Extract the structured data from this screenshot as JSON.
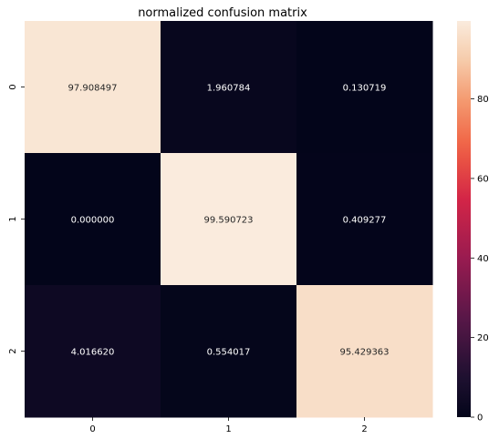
{
  "chart_data": {
    "type": "heatmap",
    "title": "normalized confusion matrix",
    "x_categories": [
      "0",
      "1",
      "2"
    ],
    "y_categories": [
      "0",
      "1",
      "2"
    ],
    "values": [
      [
        97.908497,
        1.960784,
        0.130719
      ],
      [
        0.0,
        99.590723,
        0.409277
      ],
      [
        4.01662,
        0.554017,
        95.429363
      ]
    ],
    "cell_labels": [
      [
        "97.908497",
        "1.960784",
        "0.130719"
      ],
      [
        "0.000000",
        "99.590723",
        "0.409277"
      ],
      [
        "4.016620",
        "0.554017",
        "95.429363"
      ]
    ],
    "colorbar": {
      "range": [
        0,
        99.590723
      ],
      "ticks": [
        0,
        20,
        40,
        60,
        80
      ],
      "tick_labels": [
        "0",
        "20",
        "40",
        "60",
        "80"
      ],
      "colormap": "rocket"
    },
    "xlabel": "",
    "ylabel": ""
  }
}
